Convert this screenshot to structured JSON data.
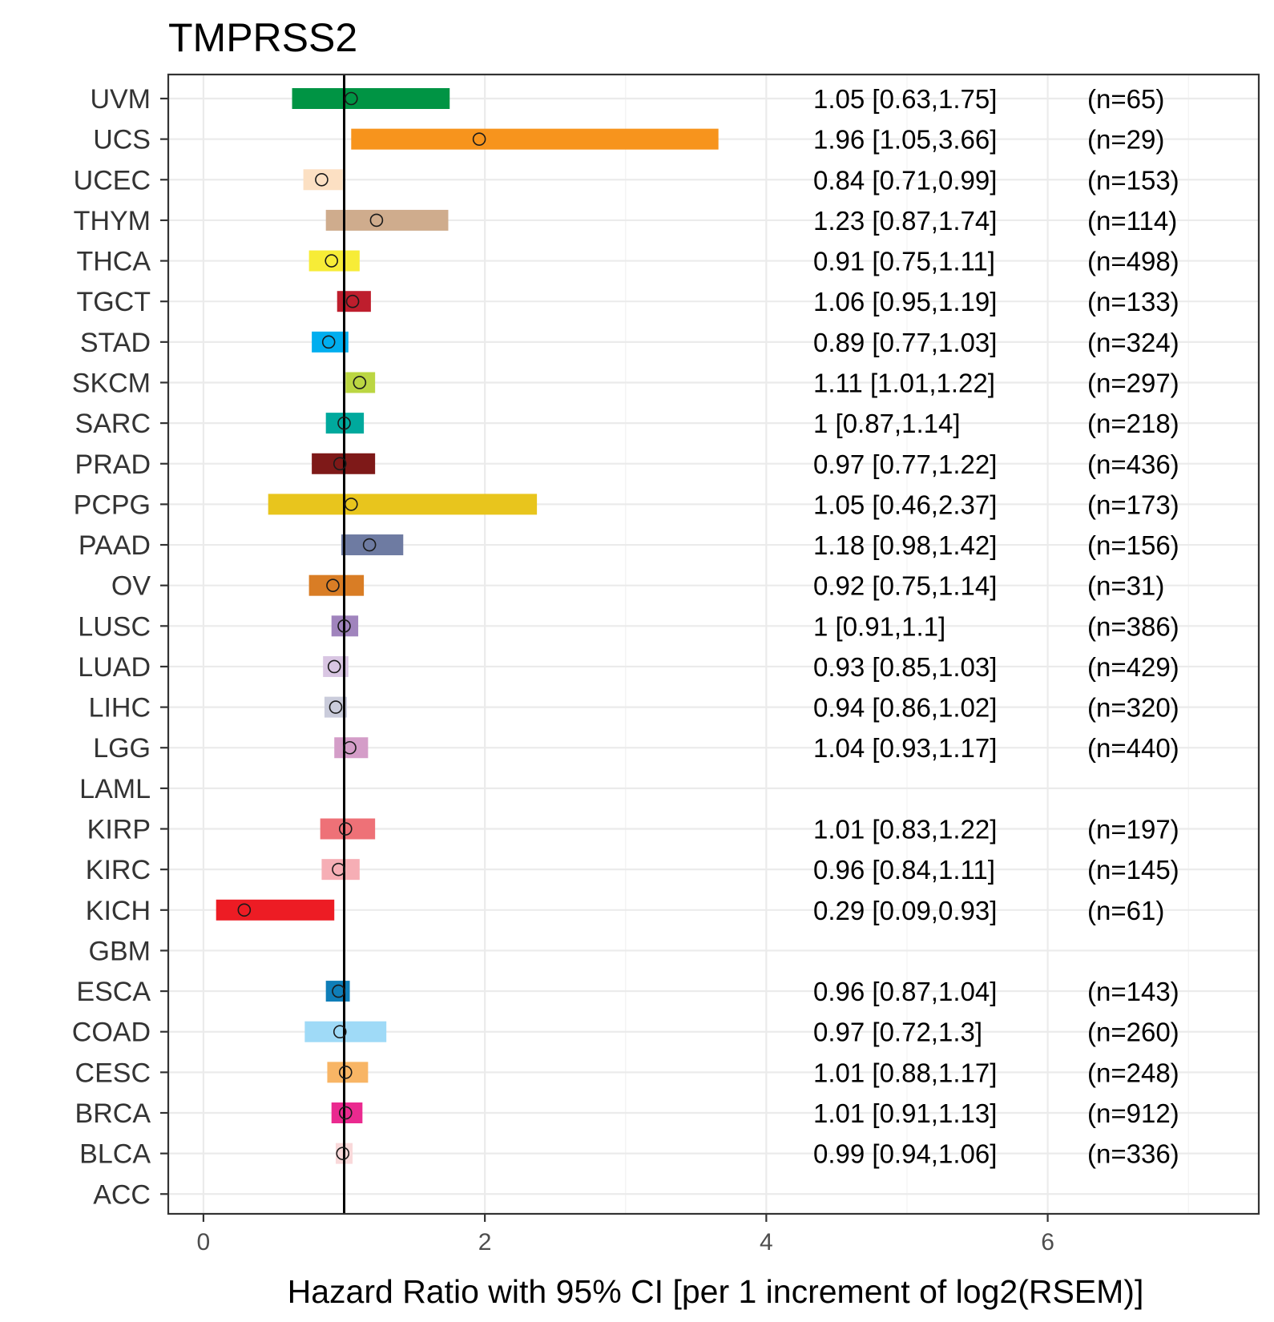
{
  "chart_data": {
    "type": "forest",
    "title": "TMPRSS2",
    "xlabel": "Hazard Ratio with 95% CI [per 1 increment of log2(RSEM)]",
    "xlim": [
      -0.25,
      7.5
    ],
    "xticks": [
      0,
      2,
      4,
      6
    ],
    "reference_line": 1,
    "rows": [
      {
        "label": "UVM",
        "hr": 1.05,
        "lo": 0.63,
        "hi": 1.75,
        "ci_text": "1.05 [0.63,1.75]",
        "n_text": "(n=65)",
        "color": "#009444"
      },
      {
        "label": "UCS",
        "hr": 1.96,
        "lo": 1.05,
        "hi": 3.66,
        "ci_text": "1.96 [1.05,3.66]",
        "n_text": "(n=29)",
        "color": "#F7941D"
      },
      {
        "label": "UCEC",
        "hr": 0.84,
        "lo": 0.71,
        "hi": 0.99,
        "ci_text": "0.84 [0.71,0.99]",
        "n_text": "(n=153)",
        "color": "#FCE0C3"
      },
      {
        "label": "THYM",
        "hr": 1.23,
        "lo": 0.87,
        "hi": 1.74,
        "ci_text": "1.23 [0.87,1.74]",
        "n_text": "(n=114)",
        "color": "#CFAC8D"
      },
      {
        "label": "THCA",
        "hr": 0.91,
        "lo": 0.75,
        "hi": 1.11,
        "ci_text": "0.91 [0.75,1.11]",
        "n_text": "(n=498)",
        "color": "#F7EC37"
      },
      {
        "label": "TGCT",
        "hr": 1.06,
        "lo": 0.95,
        "hi": 1.19,
        "ci_text": "1.06 [0.95,1.19]",
        "n_text": "(n=133)",
        "color": "#BE1E2D"
      },
      {
        "label": "STAD",
        "hr": 0.89,
        "lo": 0.77,
        "hi": 1.03,
        "ci_text": "0.89 [0.77,1.03]",
        "n_text": "(n=324)",
        "color": "#00AEEF"
      },
      {
        "label": "SKCM",
        "hr": 1.11,
        "lo": 1.01,
        "hi": 1.22,
        "ci_text": "1.11 [1.01,1.22]",
        "n_text": "(n=297)",
        "color": "#BBD642"
      },
      {
        "label": "SARC",
        "hr": 1,
        "lo": 0.87,
        "hi": 1.14,
        "ci_text": "1 [0.87,1.14]",
        "n_text": "(n=218)",
        "color": "#00A99D"
      },
      {
        "label": "PRAD",
        "hr": 0.97,
        "lo": 0.77,
        "hi": 1.22,
        "ci_text": "0.97 [0.77,1.22]",
        "n_text": "(n=436)",
        "color": "#7E1918"
      },
      {
        "label": "PCPG",
        "hr": 1.05,
        "lo": 0.46,
        "hi": 2.37,
        "ci_text": "1.05 [0.46,2.37]",
        "n_text": "(n=173)",
        "color": "#E8C51D"
      },
      {
        "label": "PAAD",
        "hr": 1.18,
        "lo": 0.98,
        "hi": 1.42,
        "ci_text": "1.18 [0.98,1.42]",
        "n_text": "(n=156)",
        "color": "#6E7BA2"
      },
      {
        "label": "OV",
        "hr": 0.92,
        "lo": 0.75,
        "hi": 1.14,
        "ci_text": "0.92 [0.75,1.14]",
        "n_text": "(n=31)",
        "color": "#D97D25"
      },
      {
        "label": "LUSC",
        "hr": 1,
        "lo": 0.91,
        "hi": 1.1,
        "ci_text": "1 [0.91,1.1]",
        "n_text": "(n=386)",
        "color": "#A084BD"
      },
      {
        "label": "LUAD",
        "hr": 0.93,
        "lo": 0.85,
        "hi": 1.03,
        "ci_text": "0.93 [0.85,1.03]",
        "n_text": "(n=429)",
        "color": "#D9C6E3"
      },
      {
        "label": "LIHC",
        "hr": 0.94,
        "lo": 0.86,
        "hi": 1.02,
        "ci_text": "0.94 [0.86,1.02]",
        "n_text": "(n=320)",
        "color": "#CACCDB"
      },
      {
        "label": "LGG",
        "hr": 1.04,
        "lo": 0.93,
        "hi": 1.17,
        "ci_text": "1.04 [0.93,1.17]",
        "n_text": "(n=440)",
        "color": "#D49DC8"
      },
      {
        "label": "LAML",
        "hr": null,
        "lo": null,
        "hi": null,
        "ci_text": "",
        "n_text": "",
        "color": "#999999"
      },
      {
        "label": "KIRP",
        "hr": 1.01,
        "lo": 0.83,
        "hi": 1.22,
        "ci_text": "1.01 [0.83,1.22]",
        "n_text": "(n=197)",
        "color": "#EE7177"
      },
      {
        "label": "KIRC",
        "hr": 0.96,
        "lo": 0.84,
        "hi": 1.11,
        "ci_text": "0.96 [0.84,1.11]",
        "n_text": "(n=145)",
        "color": "#F6AEB5"
      },
      {
        "label": "KICH",
        "hr": 0.29,
        "lo": 0.09,
        "hi": 0.93,
        "ci_text": "0.29 [0.09,0.93]",
        "n_text": "(n=61)",
        "color": "#ED1C24"
      },
      {
        "label": "GBM",
        "hr": null,
        "lo": null,
        "hi": null,
        "ci_text": "",
        "n_text": "",
        "color": "#999999"
      },
      {
        "label": "ESCA",
        "hr": 0.96,
        "lo": 0.87,
        "hi": 1.04,
        "ci_text": "0.96 [0.87,1.04]",
        "n_text": "(n=143)",
        "color": "#0F7EB8"
      },
      {
        "label": "COAD",
        "hr": 0.97,
        "lo": 0.72,
        "hi": 1.3,
        "ci_text": "0.97 [0.72,1.3]",
        "n_text": "(n=260)",
        "color": "#9FDAF7"
      },
      {
        "label": "CESC",
        "hr": 1.01,
        "lo": 0.88,
        "hi": 1.17,
        "ci_text": "1.01 [0.88,1.17]",
        "n_text": "(n=248)",
        "color": "#F8B565"
      },
      {
        "label": "BRCA",
        "hr": 1.01,
        "lo": 0.91,
        "hi": 1.13,
        "ci_text": "1.01 [0.91,1.13]",
        "n_text": "(n=912)",
        "color": "#EA2A8F"
      },
      {
        "label": "BLCA",
        "hr": 0.99,
        "lo": 0.94,
        "hi": 1.06,
        "ci_text": "0.99 [0.94,1.06]",
        "n_text": "(n=336)",
        "color": "#F9D9DA"
      },
      {
        "label": "ACC",
        "hr": null,
        "lo": null,
        "hi": null,
        "ci_text": "",
        "n_text": "",
        "color": "#999999"
      }
    ]
  }
}
